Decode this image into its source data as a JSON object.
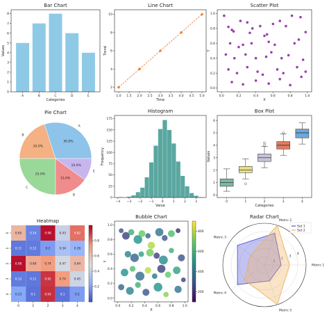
{
  "colors": {
    "bar": "#8ecae6",
    "line": "#ef7f3a",
    "scatter": "#9b3fae",
    "hist": "#5aa7a0",
    "radar_set1": "#5252d6",
    "radar_set2": "#f0b25e"
  },
  "chart_data": [
    {
      "id": "bar",
      "type": "bar",
      "title": "Bar Chart",
      "xlabel": "Categories",
      "ylabel": "Values",
      "categories": [
        "A",
        "B",
        "C",
        "D",
        "E"
      ],
      "values": [
        5,
        7,
        8,
        6,
        4
      ],
      "ylim": [
        0,
        8.4
      ],
      "yticks": [
        0,
        1,
        2,
        3,
        4,
        5,
        6,
        7,
        8
      ]
    },
    {
      "id": "line",
      "type": "line",
      "title": "Line Chart",
      "xlabel": "Time",
      "ylabel": "Trend",
      "x": [
        1,
        2,
        3,
        4,
        5
      ],
      "y": [
        2,
        4,
        6,
        8,
        10
      ],
      "xlim": [
        0.8,
        5.2
      ],
      "ylim": [
        1.5,
        10.5
      ],
      "xticks": [
        1.0,
        1.5,
        2.0,
        2.5,
        3.0,
        3.5,
        4.0,
        4.5,
        5.0
      ],
      "xtick_labels": [
        "1.0",
        "1.5",
        "2.0",
        "2.5",
        "3.0",
        "3.5",
        "4.0",
        "4.5",
        "5.0"
      ],
      "yticks": [
        2,
        4,
        6,
        8,
        10
      ]
    },
    {
      "id": "scatter",
      "type": "scatter",
      "title": "Scatter Plot",
      "xlabel": "X",
      "ylabel": "Y",
      "xlim": [
        -0.05,
        1.05
      ],
      "ylim": [
        -0.05,
        1.05
      ],
      "xticks": [
        0.0,
        0.2,
        0.4,
        0.6,
        0.8,
        1.0
      ],
      "xtick_labels": [
        "0.0",
        "0.2",
        "0.4",
        "0.6",
        "0.8",
        "1.0"
      ],
      "yticks": [
        0.0,
        0.2,
        0.4,
        0.6,
        0.8,
        1.0
      ],
      "ytick_labels": [
        "0.0",
        "0.2",
        "0.4",
        "0.6",
        "0.8",
        "1.0"
      ],
      "points": [
        [
          0.03,
          0.97
        ],
        [
          0.08,
          0.82
        ],
        [
          0.12,
          0.78
        ],
        [
          0.14,
          0.76
        ],
        [
          0.22,
          0.9
        ],
        [
          0.3,
          0.88
        ],
        [
          0.33,
          0.74
        ],
        [
          0.36,
          0.8
        ],
        [
          0.45,
          0.83
        ],
        [
          0.5,
          0.7
        ],
        [
          0.53,
          0.72
        ],
        [
          0.6,
          0.86
        ],
        [
          0.68,
          0.9
        ],
        [
          0.75,
          0.83
        ],
        [
          0.82,
          0.97
        ],
        [
          0.92,
          0.95
        ],
        [
          0.98,
          0.75
        ],
        [
          0.1,
          0.6
        ],
        [
          0.2,
          0.55
        ],
        [
          0.25,
          0.58
        ],
        [
          0.35,
          0.6
        ],
        [
          0.55,
          0.62
        ],
        [
          0.62,
          0.58
        ],
        [
          0.85,
          0.6
        ],
        [
          0.9,
          0.65
        ],
        [
          0.05,
          0.45
        ],
        [
          0.15,
          0.4
        ],
        [
          0.28,
          0.45
        ],
        [
          0.4,
          0.4
        ],
        [
          0.52,
          0.42
        ],
        [
          0.58,
          0.48
        ],
        [
          0.7,
          0.4
        ],
        [
          0.78,
          0.44
        ],
        [
          0.95,
          0.38
        ],
        [
          0.08,
          0.25
        ],
        [
          0.18,
          0.2
        ],
        [
          0.3,
          0.28
        ],
        [
          0.42,
          0.22
        ],
        [
          0.48,
          0.18
        ],
        [
          0.65,
          0.25
        ],
        [
          0.72,
          0.2
        ],
        [
          0.88,
          0.28
        ],
        [
          0.12,
          0.08
        ],
        [
          0.25,
          0.05
        ],
        [
          0.4,
          0.1
        ],
        [
          0.55,
          0.06
        ],
        [
          0.68,
          0.12
        ],
        [
          0.8,
          0.04
        ],
        [
          0.93,
          0.15
        ],
        [
          0.98,
          0.22
        ]
      ]
    },
    {
      "id": "pie",
      "type": "pie",
      "title": "Pie Chart",
      "labels": [
        "A",
        "B",
        "C",
        "D",
        "E"
      ],
      "values": [
        30.0,
        20.0,
        25.0,
        15.0,
        10.0
      ],
      "pct_labels": [
        "30.0%",
        "20.0%",
        "25.0%",
        "15.0%",
        "10.0%"
      ],
      "colors": [
        "#8ec3ea",
        "#f4b183",
        "#9ad89a",
        "#f08c8c",
        "#c7b6ee"
      ]
    },
    {
      "id": "hist",
      "type": "bar",
      "title": "Histogram",
      "xlabel": "Value",
      "ylabel": "Frequency",
      "bins": [
        -4,
        -3.6,
        -3.2,
        -2.8,
        -2.4,
        -2,
        -1.6,
        -1.2,
        -0.8,
        -0.4,
        0,
        0.4,
        0.8,
        1.2,
        1.6,
        2,
        2.4,
        2.8,
        3.2,
        3.6
      ],
      "counts": [
        1,
        0,
        2,
        5,
        12,
        22,
        45,
        78,
        115,
        152,
        172,
        150,
        120,
        80,
        48,
        25,
        10,
        4,
        1
      ],
      "xlim": [
        -4.3,
        3.9
      ],
      "ylim": [
        0,
        182
      ],
      "xticks": [
        -4,
        -3,
        -2,
        -1,
        0,
        1,
        2,
        3
      ],
      "xtick_labels": [
        "−4",
        "−3",
        "−2",
        "−1",
        "0",
        "1",
        "2",
        "3"
      ],
      "yticks": [
        0,
        25,
        50,
        75,
        100,
        125,
        150,
        175
      ]
    },
    {
      "id": "box",
      "type": "box",
      "title": "Box Plot",
      "xlabel": "Categories",
      "ylabel": "Values",
      "categories": [
        "0",
        "1",
        "2",
        "3",
        "4"
      ],
      "boxes": [
        {
          "min": 0.3,
          "q1": 0.7,
          "median": 1.0,
          "q3": 1.3,
          "max": 2.1,
          "outliers": []
        },
        {
          "min": 1.3,
          "q1": 1.8,
          "median": 2.0,
          "q3": 2.3,
          "max": 2.9,
          "outliers": [
            0.9
          ]
        },
        {
          "min": 2.2,
          "q1": 2.7,
          "median": 3.0,
          "q3": 3.3,
          "max": 3.9,
          "outliers": [
            4.2,
            4.0
          ]
        },
        {
          "min": 3.2,
          "q1": 3.7,
          "median": 4.0,
          "q3": 4.3,
          "max": 4.9,
          "outliers": [
            5.0
          ]
        },
        {
          "min": 4.1,
          "q1": 4.6,
          "median": 5.0,
          "q3": 5.3,
          "max": 5.8,
          "outliers": []
        }
      ],
      "colors": [
        "#7fb7a8",
        "#e7e08a",
        "#c4c4d6",
        "#e27b5f",
        "#6fa8d8"
      ],
      "ylim": [
        -0.2,
        6.4
      ],
      "yticks": [
        0,
        1,
        2,
        3,
        4,
        5,
        6
      ]
    },
    {
      "id": "heatmap",
      "type": "heatmap",
      "title": "Heatmap",
      "rows": [
        "0",
        "1",
        "2",
        "3",
        "4"
      ],
      "cols": [
        "0",
        "1",
        "2",
        "3",
        "4"
      ],
      "values": [
        [
          0.65,
          0.14,
          0.98,
          0.43,
          0.82
        ],
        [
          0.11,
          0.12,
          0.2,
          0.34,
          0.28
        ],
        [
          0.98,
          0.69,
          0.74,
          0.47,
          0.64
        ],
        [
          0.12,
          0.11,
          0.92,
          0.74,
          0.45
        ],
        [
          0.23,
          0.1,
          0.93,
          0.1,
          0.2
        ]
      ],
      "vmin": 0,
      "vmax": 1,
      "colorbar_ticks": [
        0.2,
        0.4,
        0.6,
        0.8
      ],
      "colorbar_tick_labels": [
        "0.2",
        "0.4",
        "0.6",
        "0.8"
      ]
    },
    {
      "id": "bubble",
      "type": "scatter",
      "title": "Bubble Chart",
      "xlabel": "X",
      "ylabel": "Y",
      "xlim": [
        -0.05,
        1.05
      ],
      "ylim": [
        -0.05,
        1.05
      ],
      "xticks": [
        0.0,
        0.2,
        0.4,
        0.6,
        0.8,
        1.0
      ],
      "xtick_labels": [
        "0.0",
        "0.2",
        "0.4",
        "0.6",
        "0.8",
        "1.0"
      ],
      "yticks": [
        0.0,
        0.2,
        0.4,
        0.6,
        0.8,
        1.0
      ],
      "ytick_labels": [
        "0.0",
        "0.2",
        "0.4",
        "0.6",
        "0.8",
        "1.0"
      ],
      "points": [
        [
          0.05,
          0.92,
          120,
          300
        ],
        [
          0.12,
          0.85,
          300,
          250
        ],
        [
          0.2,
          0.9,
          200,
          600
        ],
        [
          0.3,
          0.8,
          400,
          500
        ],
        [
          0.36,
          0.88,
          250,
          700
        ],
        [
          0.45,
          0.85,
          150,
          350
        ],
        [
          0.5,
          0.72,
          280,
          800
        ],
        [
          0.62,
          0.9,
          350,
          400
        ],
        [
          0.7,
          0.82,
          180,
          300
        ],
        [
          0.8,
          0.88,
          250,
          650
        ],
        [
          0.9,
          0.92,
          120,
          200
        ],
        [
          0.15,
          0.6,
          220,
          450
        ],
        [
          0.25,
          0.55,
          380,
          350
        ],
        [
          0.35,
          0.6,
          160,
          550
        ],
        [
          0.48,
          0.62,
          300,
          720
        ],
        [
          0.58,
          0.58,
          200,
          250
        ],
        [
          0.68,
          0.52,
          420,
          480
        ],
        [
          0.8,
          0.65,
          150,
          600
        ],
        [
          0.95,
          0.55,
          260,
          300
        ],
        [
          0.1,
          0.35,
          300,
          500
        ],
        [
          0.22,
          0.4,
          180,
          650
        ],
        [
          0.33,
          0.3,
          420,
          380
        ],
        [
          0.45,
          0.38,
          220,
          820
        ],
        [
          0.55,
          0.3,
          160,
          420
        ],
        [
          0.65,
          0.4,
          350,
          250
        ],
        [
          0.75,
          0.32,
          200,
          700
        ],
        [
          0.88,
          0.38,
          300,
          550
        ],
        [
          0.05,
          0.15,
          200,
          350
        ],
        [
          0.18,
          0.1,
          320,
          450
        ],
        [
          0.3,
          0.18,
          180,
          600
        ],
        [
          0.42,
          0.08,
          260,
          300
        ],
        [
          0.6,
          0.15,
          400,
          500
        ],
        [
          0.72,
          0.05,
          150,
          750
        ],
        [
          0.9,
          0.12,
          280,
          400
        ],
        [
          0.98,
          0.25,
          120,
          250
        ]
      ],
      "clim": [
        100,
        900
      ],
      "colorbar_ticks": [
        200,
        400,
        600,
        800
      ],
      "colorbar_tick_labels": [
        "200",
        "400",
        "600",
        "800"
      ]
    },
    {
      "id": "radar",
      "type": "radar",
      "title": "Radar Chart",
      "axes": [
        "Metric 1",
        "Metric 2",
        "Metric 3",
        "Metric 4",
        "Metric 5"
      ],
      "rlim": [
        0,
        5
      ],
      "rticks": [
        1,
        2,
        3,
        4
      ],
      "rtick_labels": [
        "1",
        "2",
        "3",
        "4"
      ],
      "series": [
        {
          "name": "Set 1",
          "values": [
            2,
            4,
            4,
            4,
            2
          ]
        },
        {
          "name": "Set 2",
          "values": [
            3,
            5,
            2,
            3,
            5
          ]
        }
      ],
      "legend": "top-right"
    }
  ]
}
